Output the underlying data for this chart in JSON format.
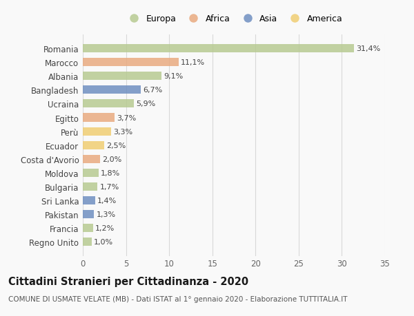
{
  "countries": [
    "Romania",
    "Marocco",
    "Albania",
    "Bangladesh",
    "Ucraina",
    "Egitto",
    "Perù",
    "Ecuador",
    "Costa d'Avorio",
    "Moldova",
    "Bulgaria",
    "Sri Lanka",
    "Pakistan",
    "Francia",
    "Regno Unito"
  ],
  "values": [
    31.4,
    11.1,
    9.1,
    6.7,
    5.9,
    3.7,
    3.3,
    2.5,
    2.0,
    1.8,
    1.7,
    1.4,
    1.3,
    1.2,
    1.0
  ],
  "labels": [
    "31,4%",
    "11,1%",
    "9,1%",
    "6,7%",
    "5,9%",
    "3,7%",
    "3,3%",
    "2,5%",
    "2,0%",
    "1,8%",
    "1,7%",
    "1,4%",
    "1,3%",
    "1,2%",
    "1,0%"
  ],
  "continents": [
    "Europa",
    "Africa",
    "Europa",
    "Asia",
    "Europa",
    "Africa",
    "America",
    "America",
    "Africa",
    "Europa",
    "Europa",
    "Asia",
    "Asia",
    "Europa",
    "Europa"
  ],
  "colors": {
    "Europa": "#b5c98e",
    "Africa": "#e8a87c",
    "Asia": "#6b8cbf",
    "America": "#f0cc6e"
  },
  "xlim": [
    0,
    35
  ],
  "xticks": [
    0,
    5,
    10,
    15,
    20,
    25,
    30,
    35
  ],
  "background_color": "#f9f9f9",
  "grid_color": "#d8d8d8",
  "title": "Cittadini Stranieri per Cittadinanza - 2020",
  "subtitle": "COMUNE DI USMATE VELATE (MB) - Dati ISTAT al 1° gennaio 2020 - Elaborazione TUTTITALIA.IT",
  "bar_height": 0.6,
  "label_fontsize": 8.0,
  "ytick_fontsize": 8.5,
  "xtick_fontsize": 8.5,
  "title_fontsize": 10.5,
  "subtitle_fontsize": 7.5,
  "legend_fontsize": 9.0
}
